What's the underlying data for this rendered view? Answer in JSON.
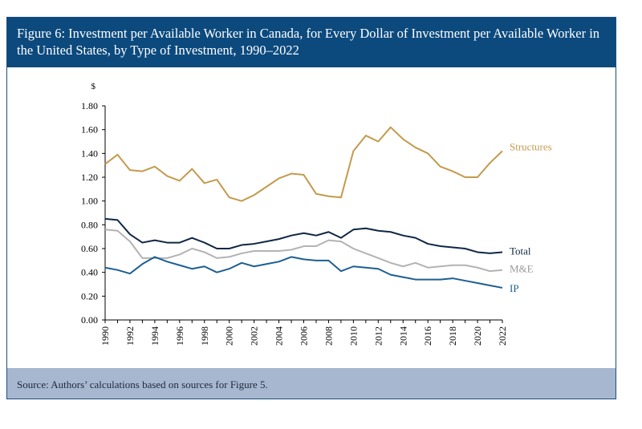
{
  "title": "Figure 6: Investment per Available Worker in Canada, for Every Dollar of Investment per Available Worker in the United States, by Type of Investment, 1990–2022",
  "source": "Source: Authors’ calculations based on sources for Figure 5.",
  "chart_data": {
    "type": "line",
    "ylabel": "$",
    "xlabel": "",
    "ylim": [
      0,
      1.8
    ],
    "yticks": [
      "0.00",
      "0.20",
      "0.40",
      "0.60",
      "0.80",
      "1.00",
      "1.20",
      "1.40",
      "1.60",
      "1.80"
    ],
    "x": [
      1990,
      1991,
      1992,
      1993,
      1994,
      1995,
      1996,
      1997,
      1998,
      1999,
      2000,
      2001,
      2002,
      2003,
      2004,
      2005,
      2006,
      2007,
      2008,
      2009,
      2010,
      2011,
      2012,
      2013,
      2014,
      2015,
      2016,
      2017,
      2018,
      2019,
      2020,
      2021,
      2022
    ],
    "xtick_labels": [
      "1990",
      "1992",
      "1994",
      "1996",
      "1998",
      "2000",
      "2002",
      "2004",
      "2006",
      "2008",
      "2010",
      "2012",
      "2014",
      "2016",
      "2018",
      "2020",
      "2022"
    ],
    "grid": false,
    "series": [
      {
        "name": "Structures",
        "color": "#c49a4c",
        "values": [
          1.31,
          1.39,
          1.26,
          1.25,
          1.29,
          1.21,
          1.17,
          1.27,
          1.15,
          1.18,
          1.03,
          1.0,
          1.05,
          1.12,
          1.19,
          1.23,
          1.22,
          1.06,
          1.04,
          1.03,
          1.42,
          1.55,
          1.5,
          1.62,
          1.52,
          1.45,
          1.4,
          1.29,
          1.25,
          1.2,
          1.2,
          1.32,
          1.42
        ]
      },
      {
        "name": "Total",
        "color": "#0f2744",
        "values": [
          0.85,
          0.84,
          0.72,
          0.65,
          0.67,
          0.65,
          0.65,
          0.69,
          0.65,
          0.6,
          0.6,
          0.63,
          0.64,
          0.66,
          0.68,
          0.71,
          0.73,
          0.71,
          0.74,
          0.69,
          0.76,
          0.77,
          0.75,
          0.74,
          0.71,
          0.69,
          0.64,
          0.62,
          0.61,
          0.6,
          0.57,
          0.56,
          0.57
        ]
      },
      {
        "name": "M&E",
        "color": "#b3b3b3",
        "values": [
          0.76,
          0.75,
          0.66,
          0.52,
          0.52,
          0.52,
          0.55,
          0.6,
          0.57,
          0.52,
          0.53,
          0.56,
          0.58,
          0.58,
          0.58,
          0.59,
          0.62,
          0.62,
          0.67,
          0.66,
          0.6,
          0.56,
          0.52,
          0.48,
          0.45,
          0.48,
          0.44,
          0.45,
          0.46,
          0.46,
          0.44,
          0.41,
          0.42
        ]
      },
      {
        "name": "IP",
        "color": "#1d5f93",
        "values": [
          0.44,
          0.42,
          0.39,
          0.47,
          0.53,
          0.49,
          0.46,
          0.43,
          0.45,
          0.4,
          0.43,
          0.48,
          0.45,
          0.47,
          0.49,
          0.53,
          0.51,
          0.5,
          0.5,
          0.41,
          0.45,
          0.44,
          0.43,
          0.38,
          0.36,
          0.34,
          0.34,
          0.34,
          0.35,
          0.33,
          0.31,
          0.29,
          0.27
        ]
      }
    ]
  }
}
